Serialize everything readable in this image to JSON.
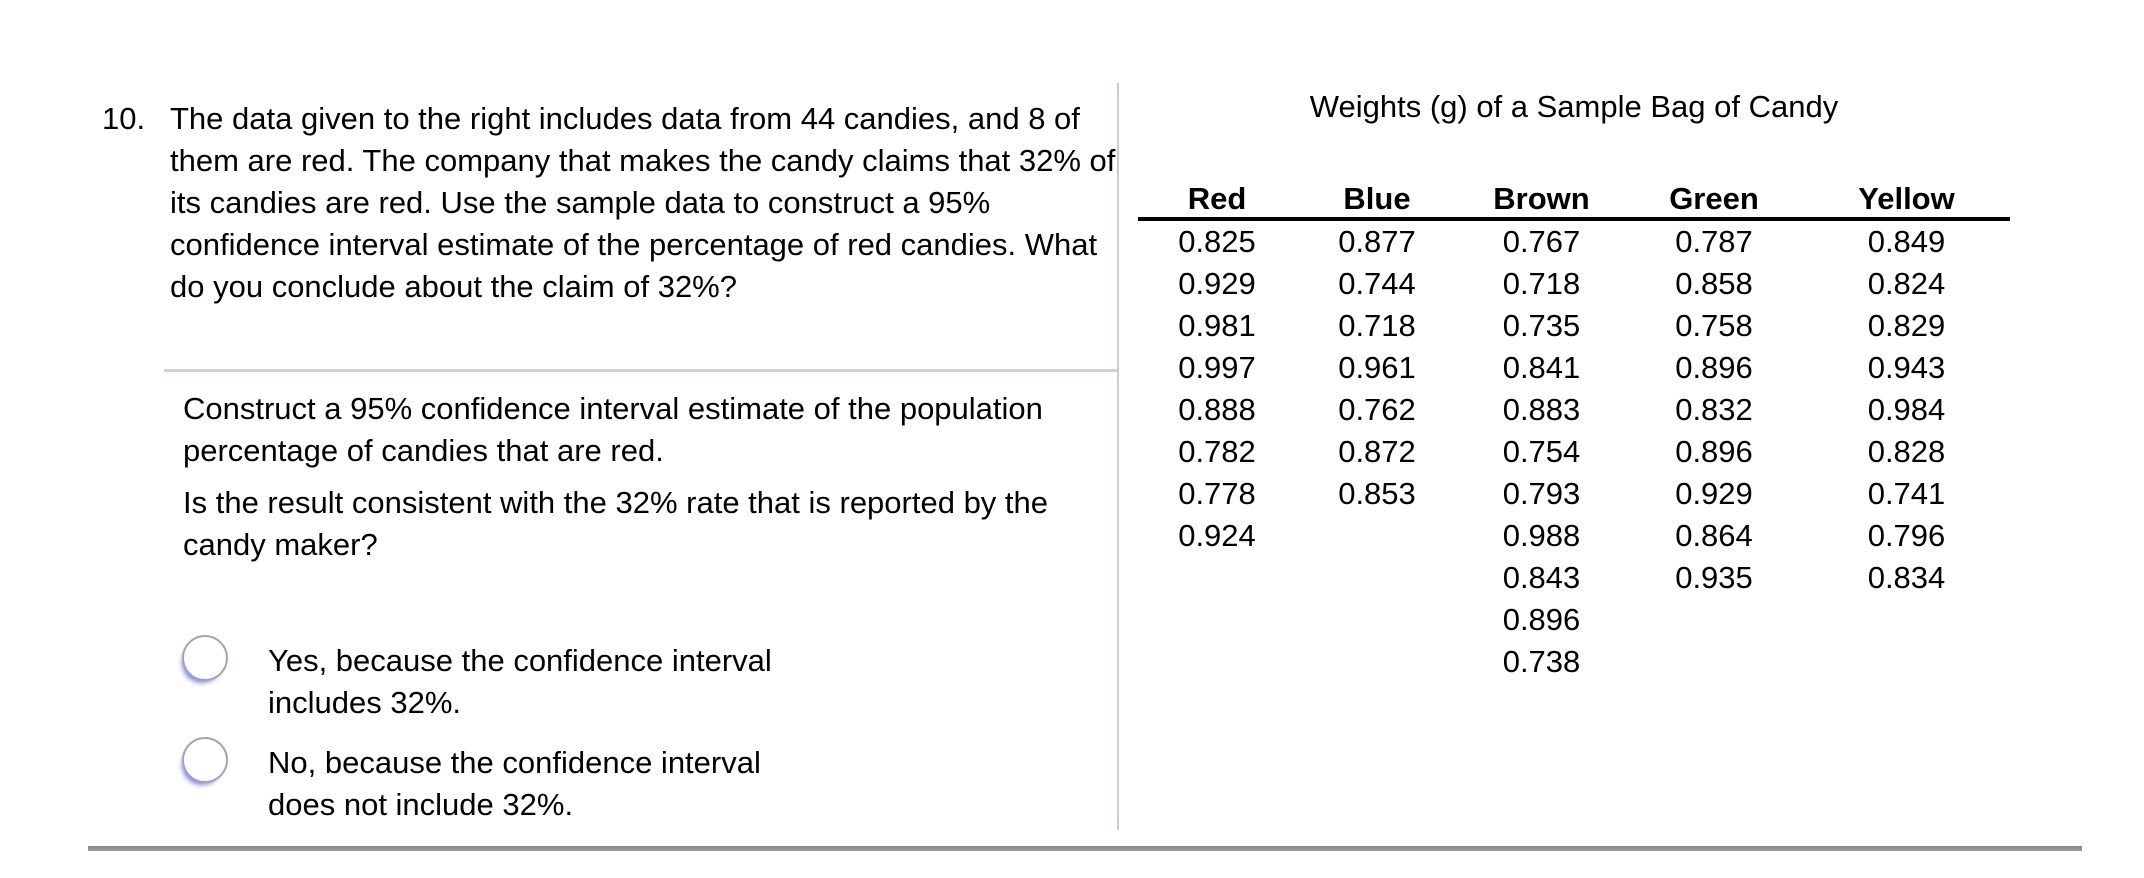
{
  "question": {
    "number": "10.",
    "text": "The data given to the right includes data from 44 candies, and 8 of them are red. The company that makes the candy claims that 32% of its candies are red. Use the sample data to construct a 95% confidence interval estimate of the percentage of red candies. What do you conclude about the claim of 32%?",
    "sub_prompt_1": "Construct a 95% confidence interval estimate of the population percentage of candies that are red.",
    "sub_prompt_2": "Is the result consistent with the 32% rate that is reported by the candy maker?",
    "options": [
      {
        "label": "Yes, because the confidence interval includes 32%.",
        "selected": false
      },
      {
        "label": "No, because the confidence interval does not include 32%.",
        "selected": false
      }
    ]
  },
  "table": {
    "title": "Weights (g) of a Sample Bag of Candy",
    "columns": [
      "Red",
      "Blue",
      "Brown",
      "Green",
      "Yellow"
    ],
    "rows": [
      [
        "0.825",
        "0.877",
        "0.767",
        "0.787",
        "0.849"
      ],
      [
        "0.929",
        "0.744",
        "0.718",
        "0.858",
        "0.824"
      ],
      [
        "0.981",
        "0.718",
        "0.735",
        "0.758",
        "0.829"
      ],
      [
        "0.997",
        "0.961",
        "0.841",
        "0.896",
        "0.943"
      ],
      [
        "0.888",
        "0.762",
        "0.883",
        "0.832",
        "0.984"
      ],
      [
        "0.782",
        "0.872",
        "0.754",
        "0.896",
        "0.828"
      ],
      [
        "0.778",
        "0.853",
        "0.793",
        "0.929",
        "0.741"
      ],
      [
        "0.924",
        "",
        "0.988",
        "0.864",
        "0.796"
      ],
      [
        "",
        "",
        "0.843",
        "0.935",
        "0.834"
      ],
      [
        "",
        "",
        "0.896",
        "",
        ""
      ],
      [
        "",
        "",
        "0.738",
        "",
        ""
      ]
    ]
  },
  "colors": {
    "text": "#000000",
    "panel_divider": "#c9cdd5",
    "section_divider": "#cdd1db",
    "bottom_rule": "#8f8f8f",
    "radio_border": "#a2a6ad",
    "radio_glow": "#6473e6"
  }
}
